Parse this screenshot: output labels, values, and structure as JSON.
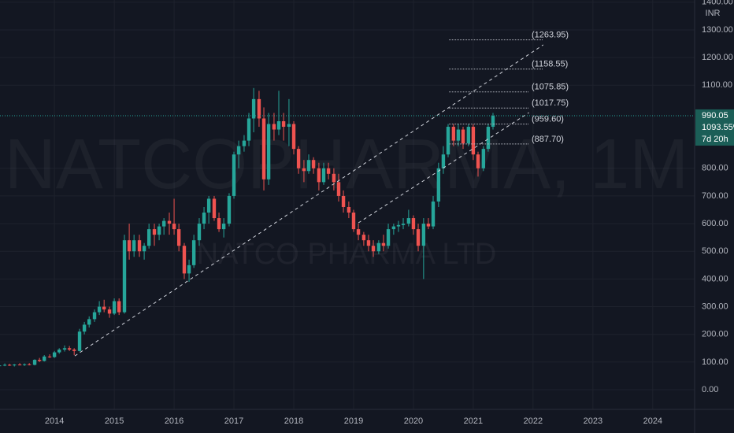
{
  "chart_data": {
    "type": "candlestick",
    "title": "NATCOPHARMA, 1M",
    "subtitle": "NATCO PHARMA LTD",
    "currency": "INR",
    "x": [
      2013.08,
      2013.17,
      2013.25,
      2013.33,
      2013.42,
      2013.5,
      2013.58,
      2013.67,
      2013.75,
      2013.83,
      2013.92,
      2014.0,
      2014.08,
      2014.17,
      2014.25,
      2014.33,
      2014.42,
      2014.5,
      2014.58,
      2014.67,
      2014.75,
      2014.83,
      2014.92,
      2015.0,
      2015.08,
      2015.17,
      2015.25,
      2015.33,
      2015.42,
      2015.5,
      2015.58,
      2015.67,
      2015.75,
      2015.83,
      2015.92,
      2016.0,
      2016.08,
      2016.17,
      2016.25,
      2016.33,
      2016.42,
      2016.5,
      2016.58,
      2016.67,
      2016.75,
      2016.83,
      2016.92,
      2017.0,
      2017.08,
      2017.17,
      2017.25,
      2017.33,
      2017.42,
      2017.5,
      2017.58,
      2017.67,
      2017.75,
      2017.83,
      2017.92,
      2018.0,
      2018.08,
      2018.17,
      2018.25,
      2018.33,
      2018.42,
      2018.5,
      2018.58,
      2018.67,
      2018.75,
      2018.83,
      2018.92,
      2019.0,
      2019.08,
      2019.17,
      2019.25,
      2019.33,
      2019.42,
      2019.5,
      2019.58,
      2019.67,
      2019.75,
      2019.83,
      2019.92,
      2020.0,
      2020.08,
      2020.17,
      2020.25,
      2020.33,
      2020.42,
      2020.5,
      2020.58,
      2020.67,
      2020.75,
      2020.83,
      2020.92,
      2021.0,
      2021.08,
      2021.17,
      2021.25,
      2021.33
    ],
    "open": [
      85,
      88,
      90,
      88,
      91,
      90,
      92,
      90,
      108,
      104,
      120,
      118,
      135,
      145,
      150,
      145,
      140,
      210,
      235,
      255,
      280,
      300,
      290,
      275,
      320,
      280,
      540,
      500,
      540,
      500,
      520,
      580,
      560,
      590,
      610,
      600,
      580,
      520,
      420,
      450,
      540,
      600,
      640,
      690,
      620,
      580,
      600,
      700,
      850,
      880,
      900,
      980,
      1050,
      980,
      760,
      960,
      940,
      970,
      950,
      960,
      870,
      800,
      790,
      830,
      800,
      750,
      800,
      780,
      750,
      700,
      660,
      640,
      580,
      560,
      540,
      520,
      500,
      530,
      520,
      580,
      590,
      595,
      600,
      620,
      580,
      520,
      600,
      590,
      680,
      800,
      850,
      950,
      900,
      940,
      890,
      950,
      850,
      800,
      870,
      950
    ],
    "high": [
      92,
      95,
      94,
      93,
      96,
      95,
      96,
      110,
      115,
      125,
      128,
      140,
      150,
      160,
      158,
      150,
      220,
      245,
      265,
      290,
      320,
      325,
      300,
      330,
      330,
      560,
      600,
      560,
      560,
      530,
      600,
      600,
      600,
      620,
      640,
      690,
      600,
      530,
      470,
      560,
      620,
      660,
      700,
      700,
      640,
      620,
      710,
      860,
      900,
      920,
      1000,
      1090,
      1080,
      1020,
      1000,
      1000,
      1080,
      1000,
      1050,
      970,
      880,
      830,
      850,
      840,
      820,
      820,
      820,
      800,
      780,
      720,
      680,
      650,
      600,
      570,
      560,
      540,
      540,
      560,
      600,
      600,
      610,
      620,
      650,
      630,
      600,
      620,
      620,
      700,
      820,
      880,
      960,
      960,
      960,
      950,
      960,
      960,
      860,
      880,
      960,
      1000
    ],
    "low": [
      82,
      85,
      86,
      84,
      88,
      86,
      88,
      88,
      100,
      102,
      115,
      115,
      130,
      138,
      140,
      125,
      138,
      200,
      225,
      245,
      270,
      280,
      260,
      270,
      270,
      275,
      470,
      480,
      480,
      470,
      510,
      520,
      540,
      560,
      560,
      560,
      500,
      400,
      390,
      440,
      520,
      580,
      600,
      610,
      570,
      550,
      590,
      690,
      800,
      860,
      880,
      930,
      950,
      720,
      740,
      900,
      920,
      900,
      880,
      850,
      780,
      750,
      780,
      780,
      720,
      740,
      760,
      720,
      680,
      640,
      620,
      570,
      540,
      520,
      500,
      480,
      490,
      500,
      510,
      560,
      570,
      580,
      590,
      560,
      500,
      400,
      580,
      580,
      660,
      780,
      840,
      880,
      880,
      870,
      880,
      830,
      770,
      790,
      860,
      940
    ],
    "close": [
      88,
      90,
      88,
      91,
      90,
      92,
      90,
      108,
      104,
      120,
      118,
      135,
      145,
      150,
      145,
      140,
      210,
      235,
      255,
      280,
      300,
      290,
      275,
      320,
      280,
      540,
      500,
      540,
      500,
      520,
      580,
      560,
      590,
      610,
      600,
      580,
      520,
      420,
      450,
      540,
      600,
      640,
      690,
      620,
      580,
      600,
      700,
      850,
      880,
      900,
      980,
      1050,
      980,
      760,
      960,
      940,
      970,
      950,
      960,
      870,
      800,
      790,
      830,
      800,
      750,
      800,
      780,
      750,
      700,
      660,
      640,
      580,
      560,
      540,
      520,
      500,
      530,
      520,
      580,
      590,
      595,
      600,
      620,
      580,
      520,
      600,
      590,
      680,
      800,
      850,
      950,
      900,
      940,
      890,
      950,
      850,
      800,
      870,
      950,
      990.05
    ],
    "up_color": "#26a69a",
    "down_color": "#ef5350",
    "xlim": [
      2013.09,
      2024.7
    ],
    "xticks": [
      2014,
      2015,
      2016,
      2017,
      2018,
      2019,
      2020,
      2021,
      2022,
      2023,
      2024
    ],
    "ylim": [
      -71,
      1408
    ],
    "yticks": [
      {
        "value": 0,
        "label": "0.00"
      },
      {
        "value": 100,
        "label": "100.00"
      },
      {
        "value": 200,
        "label": "200.00"
      },
      {
        "value": 300,
        "label": "300.00"
      },
      {
        "value": 400,
        "label": "400.00"
      },
      {
        "value": 500,
        "label": "500.00"
      },
      {
        "value": 600,
        "label": "600.00"
      },
      {
        "value": 700,
        "label": "700.00"
      },
      {
        "value": 800,
        "label": "800.00"
      },
      {
        "value": 1100,
        "label": "1100.00"
      },
      {
        "value": 1200,
        "label": "1200.00"
      },
      {
        "value": 1300,
        "label": "1300.00"
      },
      {
        "value": 1400,
        "label": "1400.00"
      }
    ],
    "last_price": 990.05,
    "change_label": "1093.55%",
    "countdown": "7d 20h",
    "levels": [
      {
        "value": 1263.95,
        "label": "(1263.95)"
      },
      {
        "value": 1158.55,
        "label": "(1158.55)"
      },
      {
        "value": 1075.85,
        "label": "(1075.85)"
      },
      {
        "value": 1017.75,
        "label": "(1017.75)"
      },
      {
        "value": 959.6,
        "label": "(959.60)"
      },
      {
        "value": 887.7,
        "label": "(887.70)"
      }
    ],
    "trendlines": [
      {
        "x": [
          2014.34,
          2022.17
        ],
        "y": [
          122,
          1246
        ]
      },
      {
        "x": [
          2019.08,
          2021.93
        ],
        "y": [
          603,
          1001
        ]
      }
    ],
    "grid": true
  }
}
